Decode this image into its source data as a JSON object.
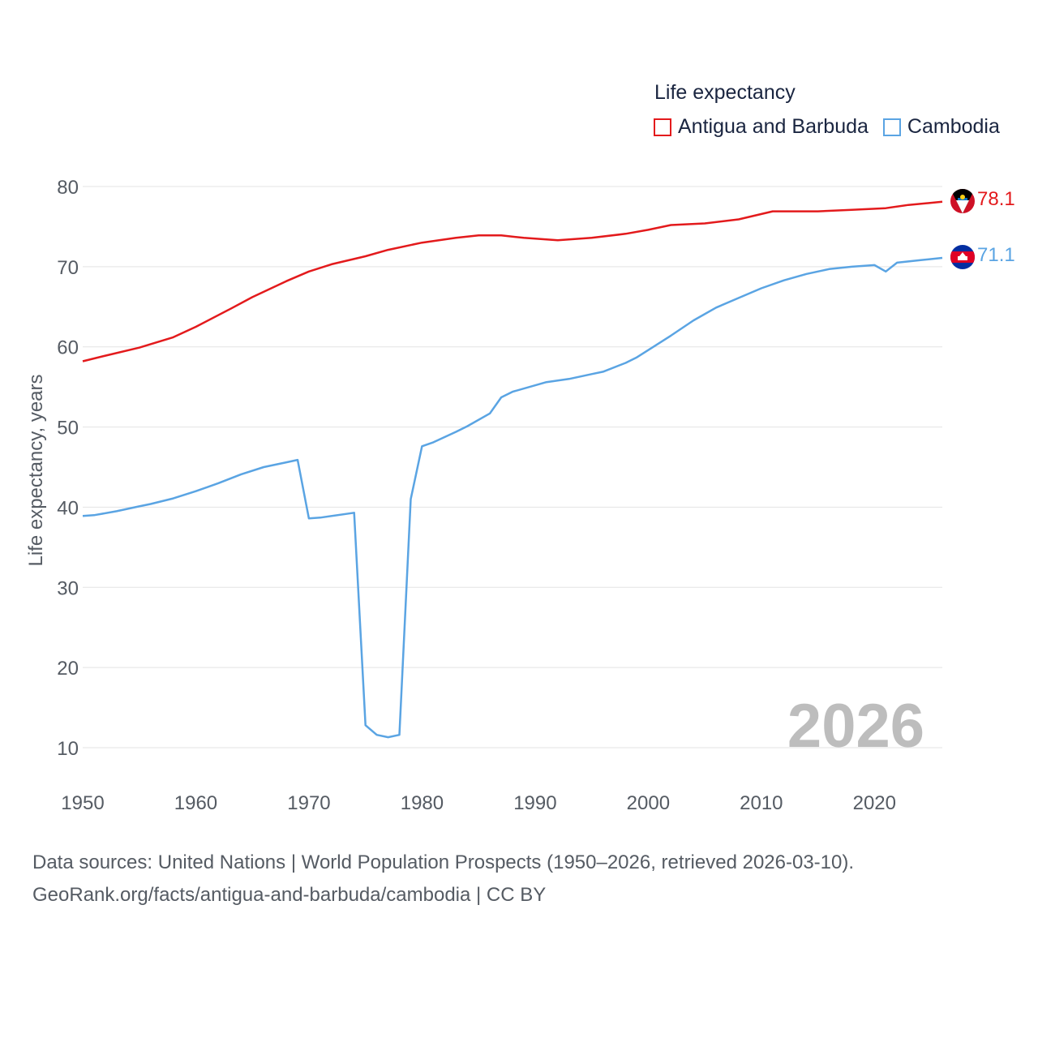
{
  "legend": {
    "title": "Life expectancy",
    "items": [
      {
        "name": "Antigua and Barbuda",
        "color": "#e31a1c"
      },
      {
        "name": "Cambodia",
        "color": "#5aa4e3"
      }
    ]
  },
  "watermark_year": "2026",
  "footer": {
    "line1": "Data sources: United Nations | World Population Prospects (1950–2026, retrieved 2026-03-10).",
    "line2": "GeoRank.org/facts/antigua-and-barbuda/cambodia | CC BY"
  },
  "end_labels": {
    "antigua": "78.1",
    "cambodia": "71.1"
  },
  "chart_data": {
    "type": "line",
    "title": "",
    "xlabel": "",
    "ylabel": "Life expectancy, years",
    "xlim": [
      1950,
      2026
    ],
    "ylim": [
      10,
      80
    ],
    "x_ticks": [
      1950,
      1960,
      1970,
      1980,
      1990,
      2000,
      2010,
      2020
    ],
    "y_ticks": [
      10,
      20,
      30,
      40,
      50,
      60,
      70,
      80
    ],
    "grid": true,
    "series": [
      {
        "name": "Antigua and Barbuda",
        "color": "#e31a1c",
        "points": [
          [
            1950,
            58.2
          ],
          [
            1952,
            58.9
          ],
          [
            1955,
            59.9
          ],
          [
            1958,
            61.2
          ],
          [
            1960,
            62.5
          ],
          [
            1963,
            64.7
          ],
          [
            1965,
            66.2
          ],
          [
            1968,
            68.2
          ],
          [
            1970,
            69.4
          ],
          [
            1972,
            70.3
          ],
          [
            1975,
            71.3
          ],
          [
            1977,
            72.1
          ],
          [
            1980,
            73.0
          ],
          [
            1983,
            73.6
          ],
          [
            1985,
            73.9
          ],
          [
            1987,
            73.9
          ],
          [
            1989,
            73.6
          ],
          [
            1992,
            73.3
          ],
          [
            1995,
            73.6
          ],
          [
            1998,
            74.1
          ],
          [
            2000,
            74.6
          ],
          [
            2002,
            75.2
          ],
          [
            2005,
            75.4
          ],
          [
            2008,
            75.9
          ],
          [
            2011,
            76.9
          ],
          [
            2013,
            76.9
          ],
          [
            2015,
            76.9
          ],
          [
            2018,
            77.1
          ],
          [
            2021,
            77.3
          ],
          [
            2023,
            77.7
          ],
          [
            2026,
            78.1
          ]
        ]
      },
      {
        "name": "Cambodia",
        "color": "#5aa4e3",
        "points": [
          [
            1950,
            38.9
          ],
          [
            1951,
            39.0
          ],
          [
            1953,
            39.5
          ],
          [
            1955,
            40.1
          ],
          [
            1956,
            40.4
          ],
          [
            1958,
            41.1
          ],
          [
            1960,
            42.0
          ],
          [
            1962,
            43.0
          ],
          [
            1964,
            44.1
          ],
          [
            1966,
            45.0
          ],
          [
            1968,
            45.6
          ],
          [
            1969,
            45.9
          ],
          [
            1970,
            38.6
          ],
          [
            1971,
            38.7
          ],
          [
            1974,
            39.3
          ],
          [
            1975,
            12.8
          ],
          [
            1976,
            11.6
          ],
          [
            1977,
            11.3
          ],
          [
            1978,
            11.6
          ],
          [
            1979,
            41.0
          ],
          [
            1980,
            47.6
          ],
          [
            1981,
            48.1
          ],
          [
            1983,
            49.4
          ],
          [
            1984,
            50.1
          ],
          [
            1986,
            51.7
          ],
          [
            1987,
            53.7
          ],
          [
            1988,
            54.4
          ],
          [
            1991,
            55.6
          ],
          [
            1993,
            56.0
          ],
          [
            1995,
            56.6
          ],
          [
            1996,
            56.9
          ],
          [
            1998,
            58.0
          ],
          [
            1999,
            58.7
          ],
          [
            2000,
            59.6
          ],
          [
            2002,
            61.4
          ],
          [
            2004,
            63.3
          ],
          [
            2006,
            64.9
          ],
          [
            2008,
            66.1
          ],
          [
            2010,
            67.3
          ],
          [
            2012,
            68.3
          ],
          [
            2014,
            69.1
          ],
          [
            2016,
            69.7
          ],
          [
            2018,
            70.0
          ],
          [
            2020,
            70.2
          ],
          [
            2021,
            69.4
          ],
          [
            2022,
            70.5
          ],
          [
            2024,
            70.8
          ],
          [
            2026,
            71.1
          ]
        ]
      }
    ]
  }
}
